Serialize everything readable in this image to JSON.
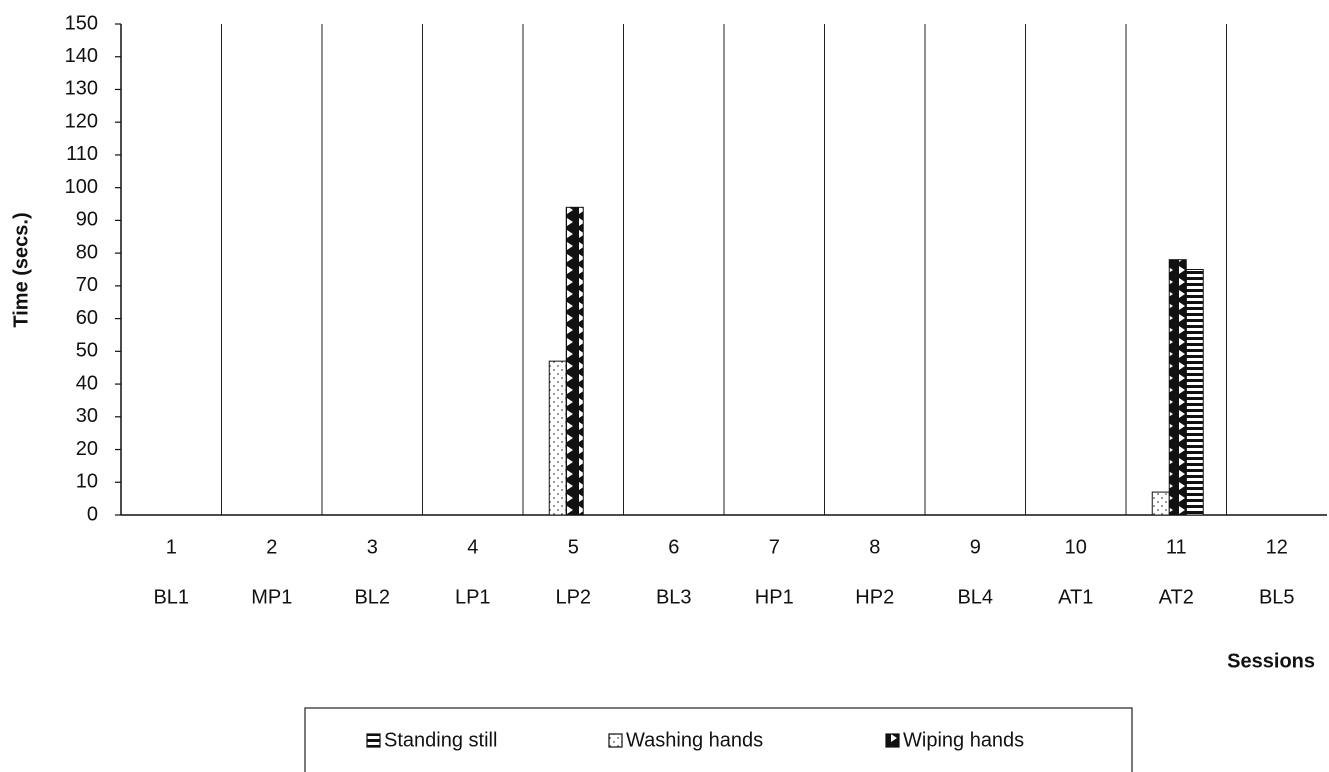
{
  "chart_data": {
    "type": "bar",
    "y_label": "Time (secs.)",
    "x_label": "Sessions",
    "categories": [
      "1",
      "2",
      "3",
      "4",
      "5",
      "6",
      "7",
      "8",
      "9",
      "10",
      "11",
      "12"
    ],
    "phases": [
      "BL1",
      "MP1",
      "BL2",
      "LP1",
      "LP2",
      "BL3",
      "HP1",
      "HP2",
      "BL4",
      "AT1",
      "AT2",
      "BL5"
    ],
    "series": [
      {
        "name": "Standing still",
        "color": "#111111",
        "values": [
          0,
          0,
          0,
          0,
          0,
          0,
          0,
          0,
          0,
          0,
          75,
          0
        ]
      },
      {
        "name": "Washing hands",
        "color": "#ffffff",
        "values": [
          0,
          0,
          0,
          0,
          47,
          0,
          0,
          0,
          0,
          0,
          7,
          0
        ]
      },
      {
        "name": "Wiping hands",
        "color": "#111111",
        "values": [
          0,
          0,
          0,
          0,
          94,
          0,
          0,
          0,
          0,
          0,
          78,
          0
        ]
      }
    ],
    "ylim": [
      0,
      150
    ],
    "yticks": [
      0,
      10,
      20,
      30,
      40,
      50,
      60,
      70,
      80,
      90,
      100,
      110,
      120,
      130,
      140,
      150
    ],
    "legend": "bottom"
  }
}
